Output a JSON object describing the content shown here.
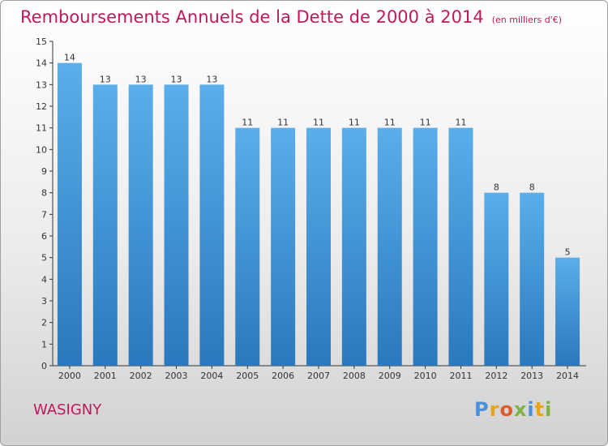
{
  "header": {
    "title": "Remboursements Annuels de la Dette de 2000 à 2014",
    "subtitle": "(en milliers d'€)"
  },
  "footer": {
    "place": "WASIGNY",
    "logo": "Proxiti"
  },
  "colors": {
    "title": "#c2185b",
    "bar_top": "#5aaeea",
    "bar_bottom": "#2a78bd",
    "logo": [
      "#4a90d9",
      "#e8a317",
      "#e05a2a",
      "#7cb342",
      "#4a90d9",
      "#e8a317",
      "#7cb342"
    ]
  },
  "chart_data": {
    "type": "bar",
    "title": "Remboursements Annuels de la Dette de 2000 à 2014",
    "subtitle": "(en milliers d'€)",
    "categories": [
      "2000",
      "2001",
      "2002",
      "2003",
      "2004",
      "2005",
      "2006",
      "2007",
      "2008",
      "2009",
      "2010",
      "2011",
      "2012",
      "2013",
      "2014"
    ],
    "values": [
      14,
      13,
      13,
      13,
      13,
      11,
      11,
      11,
      11,
      11,
      11,
      11,
      8,
      8,
      5
    ],
    "ylim": [
      0,
      15
    ],
    "yticks": [
      0,
      1,
      2,
      3,
      4,
      5,
      6,
      7,
      8,
      9,
      10,
      11,
      12,
      13,
      14,
      15
    ],
    "grid": false,
    "data_labels": true
  }
}
